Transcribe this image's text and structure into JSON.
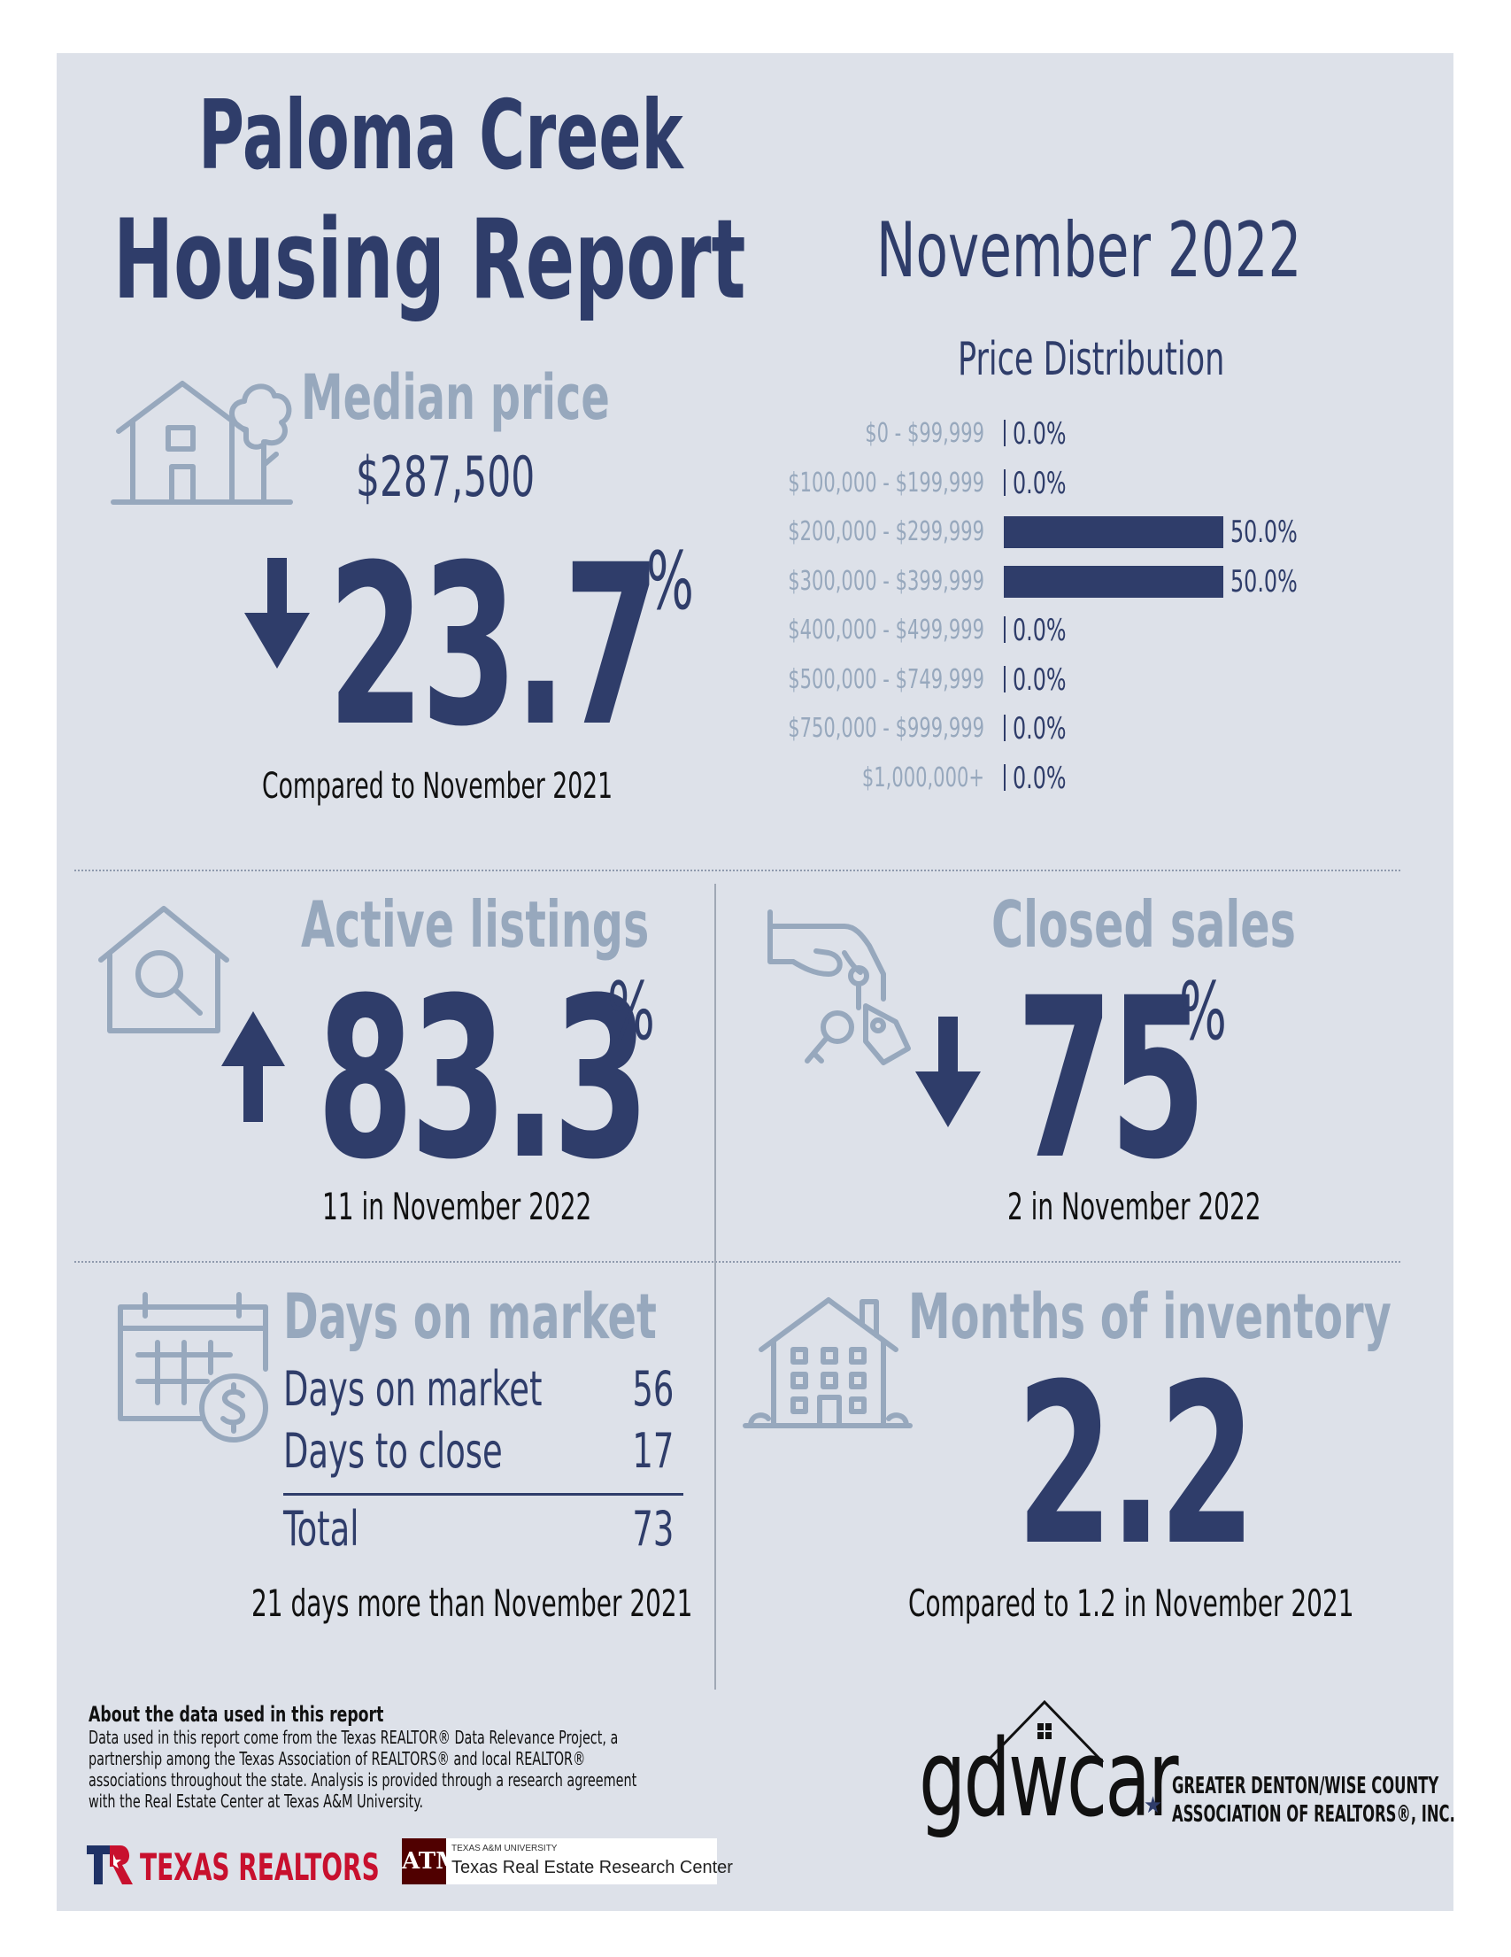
{
  "header": {
    "title_line1": "Paloma Creek",
    "title_line2": "Housing Report",
    "period": "November 2022"
  },
  "median_price": {
    "heading": "Median price",
    "value": "$287,500",
    "change": "23.7",
    "percent_sign": "%",
    "direction": "down",
    "comparison": "Compared to November 2021"
  },
  "chart_data": {
    "type": "bar",
    "title": "Price Distribution",
    "categories": [
      "$0 - $99,999",
      "$100,000 - $199,999",
      "$200,000 - $299,999",
      "$300,000 - $399,999",
      "$400,000 - $499,999",
      "$500,000 - $749,999",
      "$750,000 - $999,999",
      "$1,000,000+"
    ],
    "values": [
      0.0,
      0.0,
      50.0,
      50.0,
      0.0,
      0.0,
      0.0,
      0.0
    ],
    "value_labels": [
      "0.0%",
      "0.0%",
      "50.0%",
      "50.0%",
      "0.0%",
      "0.0%",
      "0.0%",
      "0.0%"
    ],
    "orientation": "horizontal",
    "xlim": [
      0,
      50
    ],
    "grid": false,
    "colors": {
      "bar": "#2f3d6a"
    }
  },
  "active_listings": {
    "heading": "Active listings",
    "change": "83.3",
    "percent_sign": "%",
    "direction": "up",
    "caption": "11 in November 2022"
  },
  "closed_sales": {
    "heading": "Closed sales",
    "change": "75",
    "percent_sign": "%",
    "direction": "down",
    "caption": "2 in November 2022"
  },
  "days_on_market": {
    "heading": "Days on market",
    "rows": [
      {
        "label": "Days on market",
        "value": "56"
      },
      {
        "label": "Days to close",
        "value": "17"
      }
    ],
    "total_label": "Total",
    "total_value": "73",
    "caption": "21 days more than November 2021"
  },
  "months_inventory": {
    "heading": "Months of inventory",
    "value": "2.2",
    "caption": "Compared to 1.2 in November 2021"
  },
  "footer": {
    "about_title": "About the data used in this report",
    "about_lines": [
      "Data used in this report come from the Texas REALTOR® Data Relevance Project, a",
      "partnership among the Texas Association of REALTORS® and local REALTOR®",
      "associations throughout the state. Analysis is provided through a research agreement",
      "with the Real Estate Center at Texas A&M University."
    ],
    "texas_realtors": "TEXAS REALTORS",
    "tamu_small": "TEXAS A&M UNIVERSITY",
    "tamu_name": "Texas Real Estate Research Center",
    "gdwcar_logo": "gdwcar",
    "gdwcar_line1": "GREATER DENTON/WISE COUNTY",
    "gdwcar_line2": "ASSOCIATION OF REALTORS®, INC."
  },
  "icons": {
    "median": "house-tree-icon",
    "active": "house-magnifier-icon",
    "closed": "hand-keys-icon",
    "days": "calendar-dollar-icon",
    "inventory": "apartment-building-icon"
  },
  "colors": {
    "navy": "#2f3d6a",
    "muted": "#97a8bd",
    "background": "#dde1e9"
  }
}
